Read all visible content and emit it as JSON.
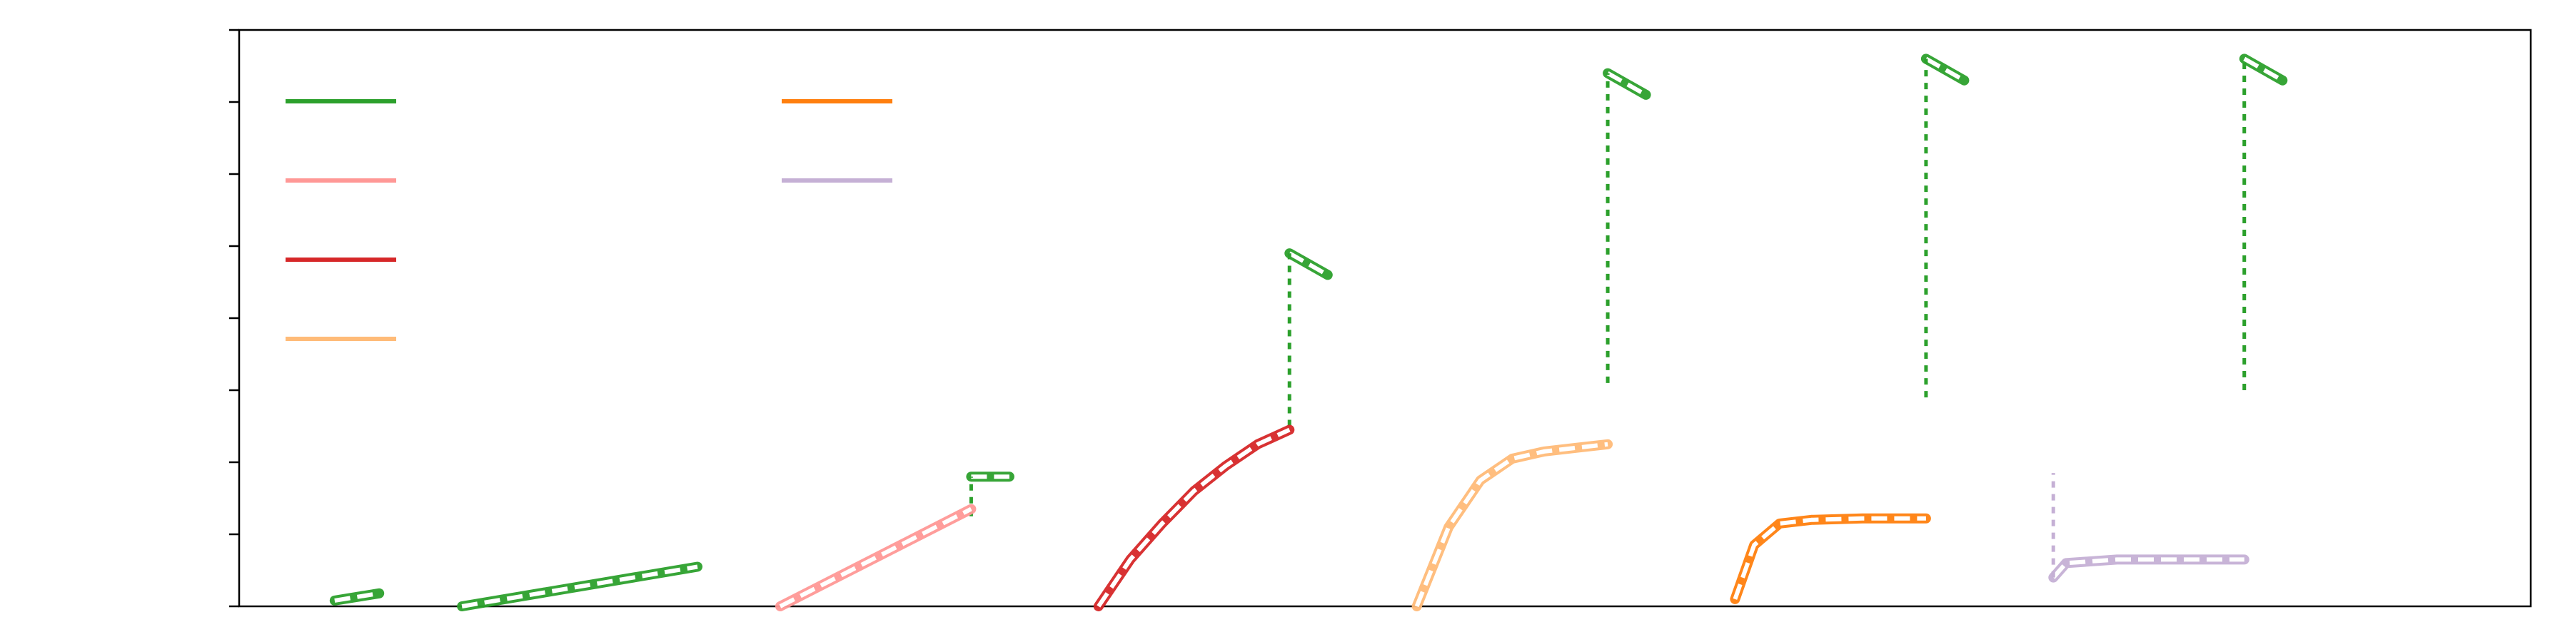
{
  "chart_data": {
    "type": "line",
    "title": "",
    "xlabel": "",
    "ylabel": "",
    "xlim": [
      0,
      36
    ],
    "ylim": [
      0,
      8
    ],
    "y_ticks": [
      0,
      1,
      2,
      3,
      4,
      5,
      6,
      7,
      8
    ],
    "x_ticks": [],
    "grid": false,
    "legend": {
      "placement": "top-left",
      "columns": 2,
      "labels": [
        "",
        "",
        "",
        "",
        "",
        ""
      ],
      "colors": [
        "#2ca02c",
        "#ff9896",
        "#d62728",
        "#ffbb78",
        "#ff7f0e",
        "#c5b0d5"
      ]
    },
    "series": [
      {
        "color": "#2ca02c",
        "style": "solid",
        "segments": [
          {
            "x": [
              1.5,
              2.2
            ],
            "y": [
              0.08,
              0.18
            ]
          },
          {
            "x": [
              3.5,
              7.2
            ],
            "y": [
              0.0,
              0.55
            ]
          },
          {
            "x": [
              11.5,
              12.1
            ],
            "y": [
              1.8,
              1.8
            ]
          },
          {
            "x": [
              16.5,
              17.1
            ],
            "y": [
              4.9,
              4.6
            ]
          },
          {
            "x": [
              21.5,
              22.1
            ],
            "y": [
              7.4,
              7.1
            ]
          },
          {
            "x": [
              26.5,
              27.1
            ],
            "y": [
              7.6,
              7.3
            ]
          },
          {
            "x": [
              31.5,
              32.1
            ],
            "y": [
              7.6,
              7.3
            ]
          }
        ],
        "jumps": [
          {
            "x": 11.5,
            "y": [
              1.25,
              1.8
            ]
          },
          {
            "x": 16.5,
            "y": [
              2.5,
              4.9
            ]
          },
          {
            "x": 21.5,
            "y": [
              3.1,
              7.4
            ]
          },
          {
            "x": 26.5,
            "y": [
              2.9,
              7.6
            ]
          },
          {
            "x": 31.5,
            "y": [
              3.0,
              7.6
            ]
          }
        ]
      },
      {
        "color": "#ff9896",
        "style": "solid",
        "segments": [
          {
            "x": [
              8.5,
              11.5
            ],
            "y": [
              0.0,
              1.35
            ]
          }
        ]
      },
      {
        "color": "#d62728",
        "style": "solid",
        "segments": [
          {
            "x": [
              13.5,
              14.0,
              14.5,
              15.0,
              15.5,
              16.0,
              16.5
            ],
            "y": [
              0.0,
              0.65,
              1.15,
              1.6,
              1.95,
              2.25,
              2.45
            ]
          }
        ]
      },
      {
        "color": "#ffbb78",
        "style": "solid",
        "segments": [
          {
            "x": [
              18.5,
              19.0,
              19.5,
              20.0,
              20.5,
              21.0,
              21.5
            ],
            "y": [
              0.0,
              1.1,
              1.75,
              2.05,
              2.15,
              2.2,
              2.25
            ]
          }
        ]
      },
      {
        "color": "#ff7f0e",
        "style": "solid",
        "segments": [
          {
            "x": [
              23.5,
              23.8,
              24.2,
              24.7,
              25.5,
              26.5
            ],
            "y": [
              0.1,
              0.85,
              1.15,
              1.2,
              1.22,
              1.22
            ]
          }
        ]
      },
      {
        "color": "#c5b0d5",
        "style": "solid",
        "segments": [
          {
            "x": [
              28.5,
              28.7,
              29.5,
              30.5,
              31.5
            ],
            "y": [
              0.4,
              0.6,
              0.65,
              0.65,
              0.65
            ]
          }
        ],
        "jumps": [
          {
            "x": 28.5,
            "y": [
              0.4,
              1.85
            ]
          }
        ]
      }
    ]
  }
}
